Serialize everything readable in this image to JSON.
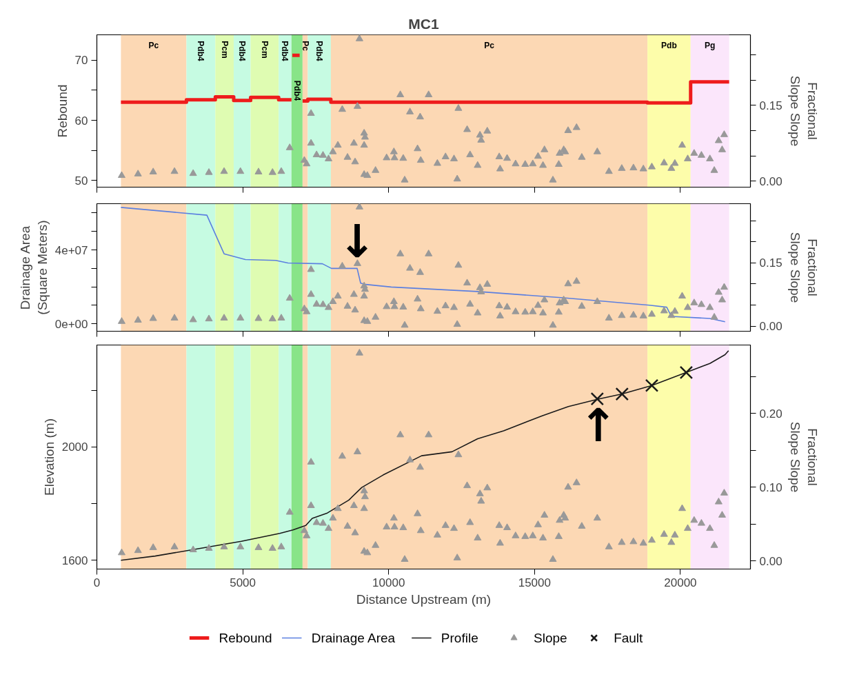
{
  "chart_data": [
    {
      "type": "step",
      "title": "MC1",
      "ylabel": "Rebound",
      "y2label": "Fractional Slope Slope",
      "xlim": [
        0,
        22400
      ],
      "xticks": [
        0,
        5000,
        10000,
        15000,
        20000
      ],
      "ylim": [
        48.9,
        74.2
      ],
      "yticks": [
        50,
        {
          "value": 55,
          "label": null
        },
        60,
        {
          "value": 65,
          "label": null
        },
        70
      ],
      "y2lim": [
        -0.012,
        0.29
      ],
      "y2ticks": [
        {
          "value": 0,
          "label": "0.00"
        },
        {
          "value": 0.05,
          "label": null
        },
        {
          "value": 0.1,
          "label": null
        },
        {
          "value": 0.15,
          "label": "0.15"
        },
        {
          "value": 0.2,
          "label": null
        },
        {
          "value": 0.25,
          "label": null
        }
      ],
      "tick_labels": "y",
      "bands": [
        {
          "axis": "x",
          "from": 825,
          "to": 3070,
          "label": "Pc",
          "color": "#fcd8b4"
        },
        {
          "axis": "x",
          "from": 3070,
          "to": 4060,
          "label": "Pdb4",
          "color": "#c6fbe2"
        },
        {
          "axis": "x",
          "from": 4060,
          "to": 4690,
          "label": "Pcm",
          "color": "#dffcb2"
        },
        {
          "axis": "x",
          "from": 4690,
          "to": 5270,
          "label": "Pdb4",
          "color": "#c6fbe2"
        },
        {
          "axis": "x",
          "from": 5270,
          "to": 6230,
          "label": "Pcm",
          "color": "#dffcb2"
        },
        {
          "axis": "x",
          "from": 6230,
          "to": 6670,
          "label": "Pdb4",
          "color": "#c6fbe2"
        },
        {
          "axis": "x",
          "from": 6670,
          "to": 7050,
          "label": "Pdb4",
          "color": "#88e488"
        },
        {
          "axis": "x",
          "from": 7050,
          "to": 7230,
          "label": "Pc",
          "color": "#fcd8b4"
        },
        {
          "axis": "x",
          "from": 7230,
          "to": 8020,
          "label": "Pdb4",
          "color": "#c6fbe2"
        },
        {
          "axis": "x",
          "from": 8020,
          "to": 18870,
          "label": "Pc",
          "color": "#fcd8b4"
        },
        {
          "axis": "x",
          "from": 18870,
          "to": 20350,
          "label": "Pdb",
          "color": "#fdfdaa"
        },
        {
          "axis": "x",
          "from": 20350,
          "to": 21670,
          "label": "Pg",
          "color": "#fbe6fb"
        }
      ],
      "series": [
        {
          "name": "Rebound",
          "color": "#ee1c1c",
          "x": [
            825,
            3070,
            3070,
            4060,
            4060,
            4690,
            4690,
            5270,
            5270,
            6230,
            6230,
            6670
          ],
          "values": [
            63.0,
            63.0,
            63.4,
            63.4,
            63.9,
            63.9,
            63.3,
            63.3,
            63.8,
            63.8,
            63.4,
            63.4
          ]
        },
        {
          "color": "#ee1c1c",
          "x": [
            6700,
            6950
          ],
          "values": [
            70.8,
            70.8
          ]
        },
        {
          "color": "#ee1c1c",
          "x": [
            7050,
            7230,
            7230,
            8020,
            8020,
            18870,
            18870,
            20350,
            20350,
            21670
          ],
          "values": [
            63.2,
            63.2,
            63.5,
            63.5,
            63.0,
            63.0,
            62.9,
            62.9,
            66.4,
            66.4
          ]
        },
        {
          "type": "scatter",
          "axis": "y2",
          "marker": "triangle",
          "color": "#999999",
          "x": [
            850,
            1410,
            1930,
            2660,
            3300,
            3840,
            4360,
            4920,
            5540,
            6020,
            6320,
            6610,
            7110,
            7190,
            7340,
            7340,
            7530,
            7750,
            7940,
            8090,
            8260,
            8410,
            8590,
            8810,
            8850,
            8930,
            9000,
            9160,
            9160,
            9190,
            9160,
            9270,
            9550,
            9930,
            10180,
            10200,
            10400,
            10500,
            10550,
            10730,
            10990,
            11080,
            11100,
            11370,
            11670,
            11950,
            12240,
            12350,
            12390,
            12690,
            12790,
            13050,
            13130,
            13170,
            13380,
            13790,
            13820,
            14060,
            14350,
            14680,
            14940,
            15120,
            15290,
            15340,
            15630,
            15830,
            15860,
            16000,
            16050,
            16150,
            16440,
            16620,
            17150,
            17550,
            17990,
            18390,
            18730,
            19020,
            19440,
            19690,
            19810,
            20060,
            20250,
            20470,
            20720,
            21010,
            21160,
            21310,
            21430,
            21500
          ],
          "values": [
            0.011,
            0.014,
            0.018,
            0.019,
            0.015,
            0.017,
            0.019,
            0.019,
            0.018,
            0.017,
            0.019,
            0.066,
            0.041,
            0.034,
            0.134,
            0.075,
            0.052,
            0.051,
            0.044,
            0.058,
            0.071,
            0.142,
            0.047,
            0.075,
            0.038,
            0.148,
            0.282,
            0.095,
            0.071,
            0.087,
            0.013,
            0.011,
            0.021,
            0.046,
            0.058,
            0.046,
            0.171,
            0.045,
            0.002,
            0.137,
            0.064,
            0.127,
            0.041,
            0.171,
            0.035,
            0.048,
            0.044,
            0.004,
            0.144,
            0.102,
            0.052,
            0.031,
            0.091,
            0.081,
            0.099,
            0.048,
            0.024,
            0.045,
            0.034,
            0.033,
            0.034,
            0.049,
            0.031,
            0.062,
            0.002,
            0.033,
            0.055,
            0.062,
            0.058,
            0.1,
            0.106,
            0.047,
            0.058,
            0.019,
            0.025,
            0.026,
            0.024,
            0.028,
            0.036,
            0.025,
            0.035,
            0.071,
            0.044,
            0.055,
            0.051,
            0.044,
            0.021,
            0.08,
            0.062,
            0.092
          ]
        }
      ]
    },
    {
      "type": "line",
      "ylabel": "Drainage Area (Square Meters)",
      "y2label": "Fractional Slope Slope",
      "xlim": [
        0,
        22400
      ],
      "xticks": [
        0,
        5000,
        10000,
        15000,
        20000
      ],
      "ylim": [
        -4000000,
        65000000
      ],
      "yticks": [
        {
          "value": 0,
          "label": "0e+00"
        },
        {
          "value": 10000000,
          "label": null
        },
        {
          "value": 20000000,
          "label": null
        },
        {
          "value": 30000000,
          "label": null
        },
        {
          "value": 40000000,
          "label": "4e+07"
        },
        {
          "value": 50000000,
          "label": null
        },
        {
          "value": 60000000,
          "label": null
        }
      ],
      "y2lim": [
        -0.012,
        0.29
      ],
      "y2ticks": [
        {
          "value": 0,
          "label": "0.00"
        },
        {
          "value": 0.05,
          "label": null
        },
        {
          "value": 0.1,
          "label": null
        },
        {
          "value": 0.15,
          "label": "0.15"
        },
        {
          "value": 0.2,
          "label": null
        },
        {
          "value": 0.25,
          "label": null
        }
      ],
      "tick_labels": "y",
      "bands": [
        {
          "axis": "x",
          "from": 825,
          "to": 3070,
          "color": "#fcd8b4"
        },
        {
          "axis": "x",
          "from": 3070,
          "to": 4060,
          "color": "#c6fbe2"
        },
        {
          "axis": "x",
          "from": 4060,
          "to": 4690,
          "color": "#dffcb2"
        },
        {
          "axis": "x",
          "from": 4690,
          "to": 5270,
          "color": "#c6fbe2"
        },
        {
          "axis": "x",
          "from": 5270,
          "to": 6230,
          "color": "#dffcb2"
        },
        {
          "axis": "x",
          "from": 6230,
          "to": 6670,
          "color": "#c6fbe2"
        },
        {
          "axis": "x",
          "from": 6670,
          "to": 7050,
          "color": "#88e488"
        },
        {
          "axis": "x",
          "from": 7050,
          "to": 7230,
          "color": "#fcd8b4"
        },
        {
          "axis": "x",
          "from": 7230,
          "to": 8020,
          "color": "#c6fbe2"
        },
        {
          "axis": "x",
          "from": 8020,
          "to": 18870,
          "color": "#fcd8b4"
        },
        {
          "axis": "x",
          "from": 18870,
          "to": 20350,
          "color": "#fdfdaa"
        },
        {
          "axis": "x",
          "from": 20350,
          "to": 21670,
          "color": "#fbe6fb"
        }
      ],
      "annotations": [
        {
          "text": "↓",
          "x": 8920,
          "y": 30000000
        }
      ],
      "series": [
        {
          "name": "Drainage Area",
          "color": "#5b7fe0",
          "x": [
            825,
            3770,
            4360,
            5090,
            6130,
            6550,
            7730,
            8040,
            8920,
            9040,
            9220,
            10090,
            13040,
            15990,
            18940,
            19530,
            19690,
            21010,
            21530
          ],
          "values": [
            63000000,
            58800000,
            37900000,
            34800000,
            34300000,
            32900000,
            32500000,
            30000000,
            30000000,
            22000000,
            21300000,
            19900000,
            17500000,
            14100000,
            10100000,
            9000000,
            4000000,
            2900000,
            1100000
          ]
        },
        {
          "type": "scatter",
          "axis": "y2",
          "marker": "triangle",
          "color": "#999999",
          "x": [
            850,
            1410,
            1930,
            2660,
            3300,
            3840,
            4360,
            4920,
            5540,
            6020,
            6320,
            6610,
            7110,
            7190,
            7340,
            7340,
            7530,
            7750,
            7940,
            8090,
            8260,
            8410,
            8590,
            8810,
            8850,
            8930,
            9000,
            9160,
            9160,
            9190,
            9160,
            9270,
            9550,
            9930,
            10180,
            10200,
            10400,
            10500,
            10550,
            10730,
            10990,
            11080,
            11100,
            11370,
            11670,
            11950,
            12240,
            12350,
            12390,
            12690,
            12790,
            13050,
            13130,
            13170,
            13380,
            13790,
            13820,
            14060,
            14350,
            14680,
            14940,
            15120,
            15290,
            15340,
            15630,
            15830,
            15860,
            16000,
            16050,
            16150,
            16440,
            16620,
            17150,
            17550,
            17990,
            18390,
            18730,
            19020,
            19440,
            19690,
            19810,
            20060,
            20250,
            20470,
            20720,
            21010,
            21160,
            21310,
            21430,
            21500
          ],
          "values": [
            0.011,
            0.014,
            0.018,
            0.019,
            0.015,
            0.017,
            0.019,
            0.019,
            0.018,
            0.017,
            0.019,
            0.066,
            0.041,
            0.034,
            0.134,
            0.075,
            0.052,
            0.051,
            0.044,
            0.058,
            0.071,
            0.142,
            0.047,
            0.075,
            0.038,
            0.148,
            0.282,
            0.095,
            0.071,
            0.087,
            0.013,
            0.011,
            0.021,
            0.046,
            0.058,
            0.046,
            0.171,
            0.045,
            0.002,
            0.137,
            0.064,
            0.127,
            0.041,
            0.171,
            0.035,
            0.048,
            0.044,
            0.004,
            0.144,
            0.102,
            0.052,
            0.031,
            0.091,
            0.081,
            0.099,
            0.048,
            0.024,
            0.045,
            0.034,
            0.033,
            0.034,
            0.049,
            0.031,
            0.062,
            0.002,
            0.033,
            0.055,
            0.062,
            0.058,
            0.1,
            0.106,
            0.047,
            0.058,
            0.019,
            0.025,
            0.026,
            0.024,
            0.028,
            0.036,
            0.025,
            0.035,
            0.071,
            0.044,
            0.055,
            0.051,
            0.044,
            0.021,
            0.08,
            0.062,
            0.092
          ]
        }
      ]
    },
    {
      "type": "line",
      "xlabel": "Distance Upstream (m)",
      "ylabel": "Elevation (m)",
      "y2label": "Fractional Slope Slope",
      "xlim": [
        0,
        22400
      ],
      "xticks": [
        0,
        5000,
        10000,
        15000,
        20000
      ],
      "ylim": [
        1569,
        2360
      ],
      "yticks": [
        1600,
        {
          "value": 1800,
          "label": null
        },
        2000,
        {
          "value": 2200,
          "label": null
        }
      ],
      "y2lim": [
        -0.011,
        0.293
      ],
      "y2ticks": [
        {
          "value": 0,
          "label": "0.00"
        },
        {
          "value": 0.05,
          "label": null
        },
        {
          "value": 0.1,
          "label": "0.10"
        },
        {
          "value": 0.15,
          "label": null
        },
        {
          "value": 0.2,
          "label": "0.20"
        },
        {
          "value": 0.25,
          "label": null
        }
      ],
      "legend": "bottom",
      "bands": [
        {
          "axis": "x",
          "from": 825,
          "to": 3070,
          "color": "#fcd8b4"
        },
        {
          "axis": "x",
          "from": 3070,
          "to": 4060,
          "color": "#c6fbe2"
        },
        {
          "axis": "x",
          "from": 4060,
          "to": 4690,
          "color": "#dffcb2"
        },
        {
          "axis": "x",
          "from": 4690,
          "to": 5270,
          "color": "#c6fbe2"
        },
        {
          "axis": "x",
          "from": 5270,
          "to": 6230,
          "color": "#dffcb2"
        },
        {
          "axis": "x",
          "from": 6230,
          "to": 6670,
          "color": "#c6fbe2"
        },
        {
          "axis": "x",
          "from": 6670,
          "to": 7050,
          "color": "#88e488"
        },
        {
          "axis": "x",
          "from": 7050,
          "to": 7230,
          "color": "#fcd8b4"
        },
        {
          "axis": "x",
          "from": 7230,
          "to": 8020,
          "color": "#c6fbe2"
        },
        {
          "axis": "x",
          "from": 8020,
          "to": 18870,
          "color": "#fcd8b4"
        },
        {
          "axis": "x",
          "from": 18870,
          "to": 20350,
          "color": "#fdfdaa"
        },
        {
          "axis": "x",
          "from": 20350,
          "to": 21670,
          "color": "#fbe6fb"
        }
      ],
      "annotations": [
        {
          "text": "↑",
          "x": 17180,
          "y": 2169
        }
      ],
      "series": [
        {
          "name": "Profile",
          "color": "#1a1a1a",
          "x": [
            825,
            2000,
            3030,
            4950,
            6270,
            6720,
            7160,
            7380,
            7900,
            8630,
            9080,
            9810,
            11130,
            12170,
            13050,
            13940,
            15260,
            16160,
            17180,
            18000,
            19020,
            20200,
            21010,
            21530,
            21650
          ],
          "values": [
            1600,
            1615,
            1633,
            1667,
            1695,
            1707,
            1723,
            1748,
            1767,
            1812,
            1857,
            1901,
            1969,
            1983,
            2029,
            2057,
            2110,
            2143,
            2169,
            2187,
            2217,
            2263,
            2295,
            2326,
            2340
          ]
        },
        {
          "type": "scatter",
          "name": "Slope",
          "axis": "y2",
          "marker": "triangle",
          "color": "#999999",
          "x": [
            850,
            1410,
            1930,
            2660,
            3300,
            3840,
            4360,
            4920,
            5540,
            6020,
            6320,
            6610,
            7110,
            7190,
            7340,
            7340,
            7530,
            7750,
            7940,
            8090,
            8260,
            8410,
            8590,
            8810,
            8850,
            8930,
            9000,
            9160,
            9160,
            9190,
            9160,
            9270,
            9550,
            9930,
            10180,
            10200,
            10400,
            10500,
            10550,
            10730,
            10990,
            11080,
            11100,
            11370,
            11670,
            11950,
            12240,
            12350,
            12390,
            12690,
            12790,
            13050,
            13130,
            13170,
            13380,
            13790,
            13820,
            14060,
            14350,
            14680,
            14940,
            15120,
            15290,
            15340,
            15630,
            15830,
            15860,
            16000,
            16050,
            16150,
            16440,
            16620,
            17150,
            17550,
            17990,
            18390,
            18730,
            19020,
            19440,
            19690,
            19810,
            20060,
            20250,
            20470,
            20720,
            21010,
            21160,
            21310,
            21430,
            21500
          ],
          "values": [
            0.011,
            0.014,
            0.018,
            0.019,
            0.015,
            0.017,
            0.019,
            0.019,
            0.018,
            0.017,
            0.019,
            0.066,
            0.041,
            0.034,
            0.134,
            0.075,
            0.052,
            0.051,
            0.044,
            0.058,
            0.071,
            0.142,
            0.047,
            0.075,
            0.038,
            0.148,
            0.282,
            0.095,
            0.071,
            0.087,
            0.013,
            0.011,
            0.021,
            0.046,
            0.058,
            0.046,
            0.171,
            0.045,
            0.002,
            0.137,
            0.064,
            0.127,
            0.041,
            0.171,
            0.035,
            0.048,
            0.044,
            0.004,
            0.144,
            0.102,
            0.052,
            0.031,
            0.091,
            0.081,
            0.099,
            0.048,
            0.024,
            0.045,
            0.034,
            0.033,
            0.034,
            0.049,
            0.031,
            0.062,
            0.002,
            0.033,
            0.055,
            0.062,
            0.058,
            0.1,
            0.106,
            0.047,
            0.058,
            0.019,
            0.025,
            0.026,
            0.024,
            0.028,
            0.036,
            0.025,
            0.035,
            0.071,
            0.044,
            0.055,
            0.051,
            0.044,
            0.021,
            0.08,
            0.062,
            0.092
          ]
        },
        {
          "type": "scatter",
          "name": "Fault",
          "marker": "cross",
          "color": "#1a1a1a",
          "x": [
            17150,
            18000,
            19020,
            20200
          ],
          "values": [
            2170,
            2187,
            2217,
            2263
          ]
        }
      ]
    }
  ]
}
